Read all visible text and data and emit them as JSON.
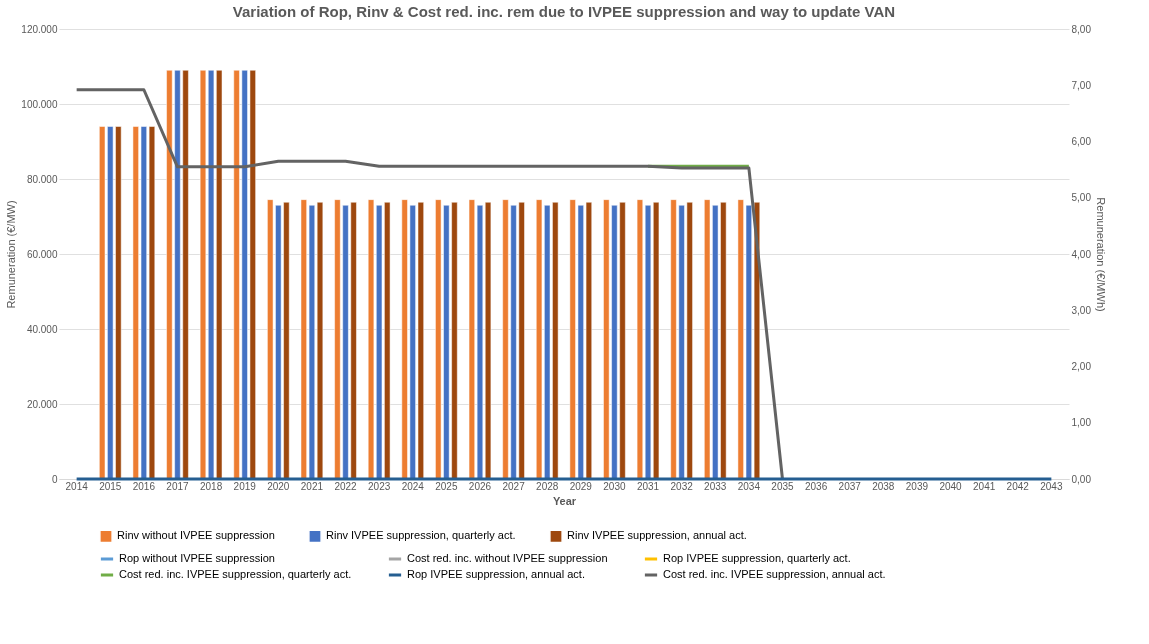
{
  "chart_data": {
    "type": "bar",
    "title": "Variation of Rop, Rinv & Cost red. inc. rem due to IVPEE suppression and way to update VAN",
    "xlabel": "Year",
    "ylabel": "Remuneration (€/MW)",
    "y2label": "Remuneration (€/MWh)",
    "categories": [
      "2014",
      "2015",
      "2016",
      "2017",
      "2018",
      "2019",
      "2020",
      "2021",
      "2022",
      "2023",
      "2024",
      "2025",
      "2026",
      "2027",
      "2028",
      "2029",
      "2030",
      "2031",
      "2032",
      "2033",
      "2034",
      "2035",
      "2036",
      "2037",
      "2038",
      "2039",
      "2040",
      "2041",
      "2042",
      "2043"
    ],
    "ylim": [
      0,
      120000
    ],
    "yticks": [
      {
        "value": 0,
        "label": "0"
      },
      {
        "value": 20000,
        "label": "20.000"
      },
      {
        "value": 40000,
        "label": "40.000"
      },
      {
        "value": 60000,
        "label": "60.000"
      },
      {
        "value": 80000,
        "label": "80.000"
      },
      {
        "value": 100000,
        "label": "100.000"
      },
      {
        "value": 120000,
        "label": "120.000"
      }
    ],
    "y2lim": [
      0,
      8
    ],
    "y2ticks": [
      {
        "value": 0,
        "label": "0,00"
      },
      {
        "value": 1,
        "label": "1,00"
      },
      {
        "value": 2,
        "label": "2,00"
      },
      {
        "value": 3,
        "label": "3,00"
      },
      {
        "value": 4,
        "label": "4,00"
      },
      {
        "value": 5,
        "label": "5,00"
      },
      {
        "value": 6,
        "label": "6,00"
      },
      {
        "value": 7,
        "label": "7,00"
      },
      {
        "value": 8,
        "label": "8,00"
      }
    ],
    "grid": "y",
    "legend": "bottom",
    "series": [
      {
        "name": "Rinv without IVPEE suppression",
        "color": "#ed7d31",
        "values": [
          null,
          94000,
          94000,
          109000,
          109000,
          109000,
          74500,
          74500,
          74500,
          74500,
          74500,
          74500,
          74500,
          74500,
          74500,
          74500,
          74500,
          74500,
          74500,
          74500,
          74500,
          null,
          null,
          null,
          null,
          null,
          null,
          null,
          null,
          null
        ]
      },
      {
        "name": "Rinv IVPEE suppression, quarterly act.",
        "color": "#4472c4",
        "values": [
          null,
          94000,
          94000,
          109000,
          109000,
          109000,
          73000,
          73000,
          73000,
          73000,
          73000,
          73000,
          73000,
          73000,
          73000,
          73000,
          73000,
          73000,
          73000,
          73000,
          73000,
          null,
          null,
          null,
          null,
          null,
          null,
          null,
          null,
          null
        ]
      },
      {
        "name": "Rinv IVPEE suppression, annual act.",
        "color": "#9e480e",
        "values": [
          null,
          94000,
          94000,
          109000,
          109000,
          109000,
          73800,
          73800,
          73800,
          73800,
          73800,
          73800,
          73800,
          73800,
          73800,
          73800,
          73800,
          73800,
          73800,
          73800,
          73800,
          null,
          null,
          null,
          null,
          null,
          null,
          null,
          null,
          null
        ]
      },
      {
        "name": "Rop without IVPEE suppression",
        "type": "line",
        "axis": "y2",
        "color": "#5b9bd5",
        "values": [
          null,
          null,
          null,
          null,
          null,
          null,
          null,
          null,
          null,
          null,
          null,
          null,
          null,
          null,
          null,
          null,
          null,
          null,
          null,
          null,
          null,
          null,
          null,
          null,
          null,
          null,
          null,
          null,
          null,
          null
        ]
      },
      {
        "name": "Cost red. inc. without IVPEE suppression",
        "type": "line",
        "axis": "y2",
        "color": "#a5a5a5",
        "values": [
          null,
          null,
          null,
          null,
          null,
          null,
          null,
          null,
          null,
          null,
          null,
          null,
          null,
          null,
          null,
          null,
          null,
          null,
          null,
          null,
          null,
          null,
          null,
          null,
          null,
          null,
          null,
          null,
          null,
          null
        ]
      },
      {
        "name": "Rop IVPEE suppression, quarterly act.",
        "type": "line",
        "axis": "y2",
        "color": "#ffc000",
        "values": [
          null,
          null,
          null,
          null,
          null,
          null,
          null,
          null,
          null,
          null,
          null,
          null,
          null,
          null,
          null,
          null,
          null,
          null,
          null,
          null,
          null,
          null,
          null,
          null,
          null,
          null,
          null,
          null,
          null,
          null
        ]
      },
      {
        "name": "Cost red. inc. IVPEE suppression, quarterly act.",
        "type": "line",
        "axis": "y2",
        "color": "#70ad47",
        "values": [
          null,
          null,
          null,
          null,
          null,
          null,
          null,
          null,
          null,
          null,
          null,
          null,
          null,
          null,
          null,
          null,
          null,
          5.56,
          5.56,
          5.56,
          5.56,
          null,
          null,
          null,
          null,
          null,
          null,
          null,
          null,
          null
        ]
      },
      {
        "name": "Rop IVPEE suppression, annual act.",
        "type": "line",
        "axis": "y2",
        "color": "#255e91",
        "values": [
          0,
          0,
          0,
          0,
          0,
          0,
          0,
          0,
          0,
          0,
          0,
          0,
          0,
          0,
          0,
          0,
          0,
          0,
          0,
          0,
          0,
          0,
          0,
          0,
          0,
          0,
          0,
          0,
          0,
          0
        ]
      },
      {
        "name": "Cost red. inc. IVPEE suppression, annual act.",
        "type": "line",
        "axis": "y2",
        "color": "#636363",
        "values": [
          6.92,
          6.92,
          6.92,
          5.55,
          5.55,
          5.55,
          5.65,
          5.65,
          5.65,
          5.56,
          5.56,
          5.56,
          5.56,
          5.56,
          5.56,
          5.56,
          5.56,
          5.56,
          5.53,
          5.53,
          5.53,
          0,
          null,
          null,
          null,
          null,
          null,
          null,
          null,
          null
        ]
      }
    ]
  }
}
